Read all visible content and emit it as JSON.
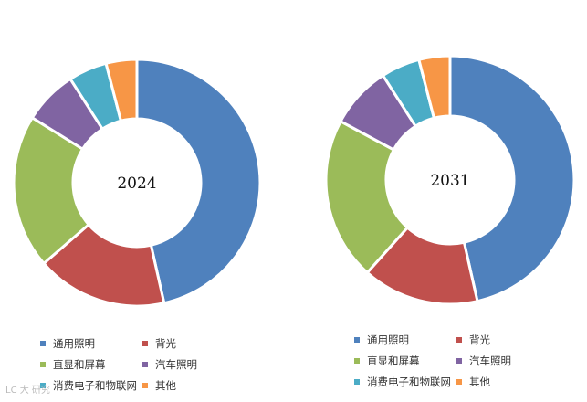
{
  "chart_data": [
    {
      "type": "pie",
      "center_label": "2024",
      "categories": [
        "通用照明",
        "背光",
        "直显和屏幕",
        "汽车照明",
        "消费电子和物联网",
        "其他"
      ],
      "values": [
        46,
        17,
        20,
        7,
        5,
        4
      ]
    },
    {
      "type": "pie",
      "center_label": "2031",
      "categories": [
        "通用照明",
        "背光",
        "直显和屏幕",
        "汽车照明",
        "消费电子和物联网",
        "其他"
      ],
      "values": [
        46,
        15,
        21,
        8,
        5,
        4
      ]
    }
  ],
  "colors": [
    "#4f81bd",
    "#c0504d",
    "#9bbb59",
    "#8064a2",
    "#4bacc6",
    "#f79646"
  ],
  "watermark": "LC 大 研究"
}
